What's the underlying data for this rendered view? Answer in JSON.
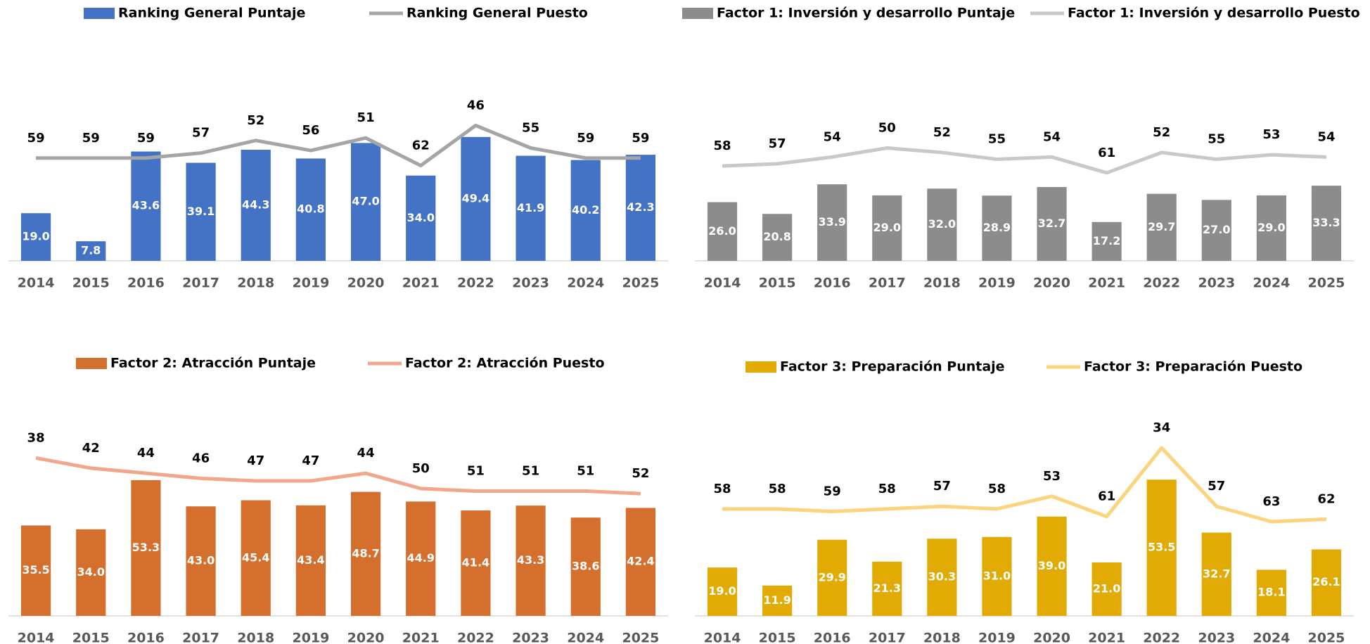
{
  "chart_data": [
    {
      "type": "combo",
      "categories": [
        "2014",
        "2015",
        "2016",
        "2017",
        "2018",
        "2019",
        "2020",
        "2021",
        "2022",
        "2023",
        "2024",
        "2025"
      ],
      "series": [
        {
          "name": "Ranking General Puntaje",
          "type": "bar",
          "color": "#4472c4",
          "values": [
            19.0,
            7.8,
            43.6,
            39.1,
            44.3,
            40.8,
            47.0,
            34.0,
            49.4,
            41.9,
            40.2,
            42.3
          ],
          "value_labels": [
            "19.0",
            "7.8",
            "43.6",
            "39.1",
            "44.3",
            "40.8",
            "47.0",
            "34.0",
            "49.4",
            "41.9",
            "40.2",
            "42.3"
          ]
        },
        {
          "name": "Ranking General Puesto",
          "type": "line",
          "axis": "y2",
          "color": "#a5a5a5",
          "values": [
            59,
            59,
            59,
            57,
            52,
            56,
            51,
            62,
            46,
            55,
            59,
            59
          ]
        }
      ],
      "ylim": [
        0,
        90
      ],
      "y2lim": [
        10,
        100
      ],
      "y2_inverted": true
    },
    {
      "type": "combo",
      "categories": [
        "2014",
        "2015",
        "2016",
        "2017",
        "2018",
        "2019",
        "2020",
        "2021",
        "2022",
        "2023",
        "2024",
        "2025"
      ],
      "series": [
        {
          "name": "Factor 1: Inversión y desarrollo Puntaje",
          "type": "bar",
          "color": "#8c8c8c",
          "values": [
            26.0,
            20.8,
            33.9,
            29.0,
            32.0,
            28.9,
            32.7,
            17.2,
            29.7,
            27.0,
            29.0,
            33.3
          ],
          "value_labels": [
            "26.0",
            "20.8",
            "33.9",
            "29.0",
            "32.0",
            "28.9",
            "32.7",
            "17.2",
            "29.7",
            "27.0",
            "29.0",
            "33.3"
          ]
        },
        {
          "name": "Factor 1: Inversión y desarrollo Puesto",
          "type": "line",
          "axis": "y2",
          "color": "#c9c9c9",
          "values": [
            58,
            57,
            54,
            50,
            52,
            55,
            54,
            61,
            52,
            55,
            53,
            54
          ]
        }
      ],
      "ylim": [
        0,
        100
      ],
      "y2lim": [
        0,
        100
      ],
      "y2_inverted": true
    },
    {
      "type": "combo",
      "categories": [
        "2014",
        "2015",
        "2016",
        "2017",
        "2018",
        "2019",
        "2020",
        "2021",
        "2022",
        "2023",
        "2024",
        "2025"
      ],
      "series": [
        {
          "name": "Factor 2: Atracción Puntaje",
          "type": "bar",
          "color": "#d46f2d",
          "values": [
            35.5,
            34.0,
            53.3,
            43.0,
            45.4,
            43.4,
            48.7,
            44.9,
            41.4,
            43.3,
            38.6,
            42.4
          ],
          "value_labels": [
            "35.5",
            "34.0",
            "53.3",
            "43.0",
            "45.4",
            "43.4",
            "48.7",
            "44.9",
            "41.4",
            "43.3",
            "38.6",
            "42.4"
          ]
        },
        {
          "name": "Factor 2: Atracción Puesto",
          "type": "line",
          "axis": "y2",
          "color": "#f1a78c",
          "values": [
            38,
            42,
            44,
            46,
            47,
            47,
            44,
            50,
            51,
            51,
            51,
            52
          ]
        }
      ],
      "ylim": [
        0,
        90
      ],
      "y2lim": [
        10,
        100
      ],
      "y2_inverted": true
    },
    {
      "type": "combo",
      "categories": [
        "2014",
        "2015",
        "2016",
        "2017",
        "2018",
        "2019",
        "2020",
        "2021",
        "2022",
        "2023",
        "2024",
        "2025"
      ],
      "series": [
        {
          "name": "Factor 3: Preparación Puntaje",
          "type": "bar",
          "color": "#e1aa04",
          "values": [
            19.0,
            11.9,
            29.9,
            21.3,
            30.3,
            31.0,
            39.0,
            21.0,
            53.5,
            32.7,
            18.1,
            26.1
          ],
          "value_labels": [
            "19.0",
            "11.9",
            "29.9",
            "21.3",
            "30.3",
            "31.0",
            "39.0",
            "21.0",
            "53.5",
            "32.7",
            "18.1",
            "26.1"
          ]
        },
        {
          "name": "Factor 3: Preparación Puesto",
          "type": "line",
          "axis": "y2",
          "color": "#fdd47e",
          "values": [
            58,
            58,
            59,
            58,
            57,
            58,
            53,
            61,
            34,
            57,
            63,
            62
          ]
        }
      ],
      "ylim": [
        0,
        90
      ],
      "y2lim": [
        10,
        100
      ],
      "y2_inverted": true
    }
  ]
}
